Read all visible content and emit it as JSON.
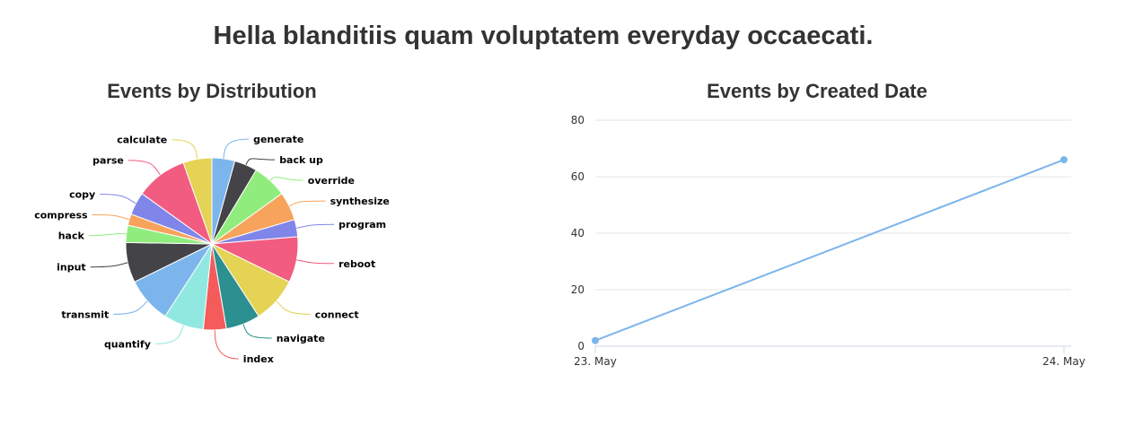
{
  "page": {
    "title": "Hella blanditiis quam voluptatem everyday occaecati."
  },
  "chart_data": [
    {
      "type": "pie",
      "title": "Events by Distribution",
      "start": "top, clockwise",
      "slices": [
        {
          "label": "generate",
          "value": 4,
          "color": "#7cb5ec"
        },
        {
          "label": "back up",
          "value": 4,
          "color": "#434348"
        },
        {
          "label": "override",
          "value": 6,
          "color": "#90ed7d"
        },
        {
          "label": "synthesize",
          "value": 5,
          "color": "#f7a35c"
        },
        {
          "label": "program",
          "value": 3,
          "color": "#8085e9"
        },
        {
          "label": "reboot",
          "value": 8,
          "color": "#f15c80"
        },
        {
          "label": "connect",
          "value": 8,
          "color": "#e4d354"
        },
        {
          "label": "navigate",
          "value": 6,
          "color": "#2b908f"
        },
        {
          "label": "index",
          "value": 4,
          "color": "#f45b5b"
        },
        {
          "label": "quantify",
          "value": 7,
          "color": "#91e8e1"
        },
        {
          "label": "transmit",
          "value": 8,
          "color": "#7cb5ec"
        },
        {
          "label": "input",
          "value": 7,
          "color": "#434348"
        },
        {
          "label": "hack",
          "value": 3,
          "color": "#90ed7d"
        },
        {
          "label": "compress",
          "value": 2,
          "color": "#f7a35c"
        },
        {
          "label": "copy",
          "value": 4,
          "color": "#8085e9"
        },
        {
          "label": "parse",
          "value": 9,
          "color": "#f15c80"
        },
        {
          "label": "calculate",
          "value": 5,
          "color": "#e4d354"
        }
      ]
    },
    {
      "type": "line",
      "title": "Events by Created Date",
      "xlabel": "",
      "ylabel": "",
      "categories": [
        "23. May",
        "24. May"
      ],
      "ylim": [
        0,
        80
      ],
      "yticks": [
        "0",
        "20",
        "40",
        "60",
        "80"
      ],
      "grid": true,
      "series": [
        {
          "values": [
            2,
            66
          ],
          "color": "#7cb5ec"
        }
      ]
    }
  ]
}
